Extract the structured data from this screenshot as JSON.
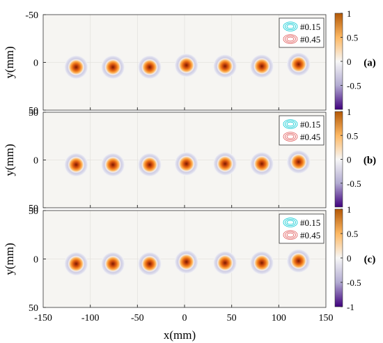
{
  "chart_data": [
    {
      "type": "heatmap",
      "panel_label": "(a)",
      "x_range": [
        -150,
        150
      ],
      "y_range": [
        -50,
        50
      ],
      "y_reversed": true,
      "y_ticks": [
        "-50",
        "0",
        "50"
      ],
      "ylabel": "y(mm)",
      "spots": [
        {
          "x": -115,
          "y": 5,
          "peak": 1
        },
        {
          "x": -76,
          "y": 5,
          "peak": 1
        },
        {
          "x": -37,
          "y": 5,
          "peak": 1
        },
        {
          "x": 2,
          "y": 3,
          "peak": 1
        },
        {
          "x": 43,
          "y": 4,
          "peak": 1
        },
        {
          "x": 82,
          "y": 4,
          "peak": 1
        },
        {
          "x": 121,
          "y": 2,
          "peak": 1
        }
      ],
      "legend": [
        {
          "label": "#0.15",
          "color": "#00c8d2"
        },
        {
          "label": "#0.45",
          "color": "#e05555"
        }
      ]
    },
    {
      "type": "heatmap",
      "panel_label": "(b)",
      "x_range": [
        -150,
        150
      ],
      "y_range": [
        -50,
        50
      ],
      "y_reversed": true,
      "y_ticks": [
        "50",
        "0",
        "50"
      ],
      "ylabel": "y(mm)",
      "spots": [
        {
          "x": -115,
          "y": 5,
          "peak": 1
        },
        {
          "x": -76,
          "y": 5,
          "peak": 1
        },
        {
          "x": -37,
          "y": 5,
          "peak": 1
        },
        {
          "x": 2,
          "y": 4,
          "peak": 1
        },
        {
          "x": 43,
          "y": 4,
          "peak": 1
        },
        {
          "x": 82,
          "y": 4,
          "peak": 1
        },
        {
          "x": 121,
          "y": 2,
          "peak": 1
        }
      ],
      "legend": [
        {
          "label": "#0.15",
          "color": "#00c8d2"
        },
        {
          "label": "#0.45",
          "color": "#e05555"
        }
      ]
    },
    {
      "type": "heatmap",
      "panel_label": "(c)",
      "x_range": [
        -150,
        150
      ],
      "y_range": [
        -50,
        50
      ],
      "y_reversed": true,
      "y_ticks": [
        "50",
        "0",
        "50"
      ],
      "ylabel": "y(mm)",
      "xlabel": "x(mm)",
      "x_ticks": [
        "-150",
        "-100",
        "-50",
        "0",
        "50",
        "100",
        "150"
      ],
      "spots": [
        {
          "x": -115,
          "y": 5,
          "peak": 1
        },
        {
          "x": -76,
          "y": 5,
          "peak": 1
        },
        {
          "x": -37,
          "y": 5,
          "peak": 1
        },
        {
          "x": 2,
          "y": 3,
          "peak": 1
        },
        {
          "x": 43,
          "y": 4,
          "peak": 1
        },
        {
          "x": 82,
          "y": 4,
          "peak": 1
        },
        {
          "x": 121,
          "y": 2,
          "peak": 1
        }
      ],
      "legend": [
        {
          "label": "#0.15",
          "color": "#00c8d2"
        },
        {
          "label": "#0.45",
          "color": "#e05555"
        }
      ]
    }
  ],
  "colorbars": [
    {
      "ticks": [
        "1",
        "0.5",
        "0",
        "-0.5"
      ],
      "range": [
        -1,
        1
      ]
    },
    {
      "ticks": [
        "1",
        "0.5",
        "0",
        "-0.5"
      ],
      "range": [
        -1,
        1
      ]
    },
    {
      "ticks": [
        "1",
        "0.5",
        "0",
        "-0.5",
        "-1"
      ],
      "range": [
        -1,
        1
      ]
    }
  ],
  "colormap": {
    "high": "#b35806",
    "mid_high": "#fdb863",
    "zero": "#f7f7f7",
    "mid_low": "#b2abd2",
    "low": "#3f007d"
  }
}
